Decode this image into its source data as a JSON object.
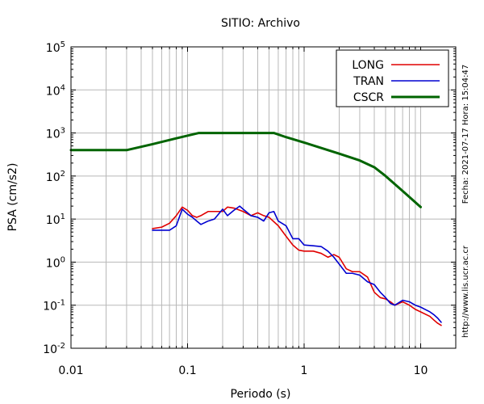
{
  "chart_data": {
    "type": "line",
    "title": "SITIO: Archivo",
    "xlabel": "Periodo (s)",
    "ylabel": "PSA (cm/s2)",
    "xscale": "log",
    "yscale": "log",
    "xlim": [
      0.01,
      20
    ],
    "ylim": [
      0.01,
      100000
    ],
    "grid": true,
    "legend_position": "top-right",
    "x_tick_labels": [
      "0.01",
      "0.1",
      "1",
      "10"
    ],
    "y_tick_labels": [
      {
        "base": "10",
        "exp": "-2"
      },
      {
        "base": "10",
        "exp": "-1"
      },
      {
        "base": "10",
        "exp": "0"
      },
      {
        "base": "10",
        "exp": "1"
      },
      {
        "base": "10",
        "exp": "2"
      },
      {
        "base": "10",
        "exp": "3"
      },
      {
        "base": "10",
        "exp": "4"
      },
      {
        "base": "10",
        "exp": "5"
      }
    ],
    "side_labels": {
      "date": "Fecha: 2021-07-17 Hora: 15:04:47",
      "url": "http://www.lis.ucr.ac.cr"
    },
    "series": [
      {
        "name": "LONG",
        "color": "#e00000",
        "points": [
          [
            0.05,
            6
          ],
          [
            0.06,
            6.5
          ],
          [
            0.07,
            8
          ],
          [
            0.08,
            12
          ],
          [
            0.09,
            19
          ],
          [
            0.1,
            16
          ],
          [
            0.11,
            12
          ],
          [
            0.12,
            11
          ],
          [
            0.13,
            12
          ],
          [
            0.15,
            15
          ],
          [
            0.17,
            15
          ],
          [
            0.2,
            15
          ],
          [
            0.22,
            19
          ],
          [
            0.25,
            18
          ],
          [
            0.3,
            15
          ],
          [
            0.35,
            12
          ],
          [
            0.4,
            14
          ],
          [
            0.45,
            12
          ],
          [
            0.5,
            11
          ],
          [
            0.6,
            7
          ],
          [
            0.7,
            4
          ],
          [
            0.8,
            2.5
          ],
          [
            0.9,
            1.9
          ],
          [
            1.0,
            1.8
          ],
          [
            1.2,
            1.8
          ],
          [
            1.4,
            1.6
          ],
          [
            1.6,
            1.3
          ],
          [
            1.8,
            1.5
          ],
          [
            2.0,
            1.3
          ],
          [
            2.3,
            0.7
          ],
          [
            2.6,
            0.6
          ],
          [
            3.0,
            0.6
          ],
          [
            3.5,
            0.45
          ],
          [
            4.0,
            0.2
          ],
          [
            4.5,
            0.15
          ],
          [
            5.0,
            0.14
          ],
          [
            5.5,
            0.12
          ],
          [
            6.0,
            0.1
          ],
          [
            7.0,
            0.12
          ],
          [
            8.0,
            0.1
          ],
          [
            9.0,
            0.08
          ],
          [
            10.0,
            0.07
          ],
          [
            12.0,
            0.055
          ],
          [
            13.0,
            0.045
          ],
          [
            14.0,
            0.038
          ],
          [
            15.0,
            0.034
          ]
        ]
      },
      {
        "name": "TRAN",
        "color": "#0000d0",
        "points": [
          [
            0.05,
            5.5
          ],
          [
            0.06,
            5.5
          ],
          [
            0.07,
            5.5
          ],
          [
            0.08,
            7
          ],
          [
            0.09,
            17
          ],
          [
            0.1,
            13
          ],
          [
            0.11,
            11
          ],
          [
            0.12,
            9
          ],
          [
            0.13,
            7.5
          ],
          [
            0.15,
            9
          ],
          [
            0.17,
            10
          ],
          [
            0.2,
            17
          ],
          [
            0.22,
            12
          ],
          [
            0.25,
            16
          ],
          [
            0.28,
            20
          ],
          [
            0.3,
            17
          ],
          [
            0.35,
            12
          ],
          [
            0.4,
            11
          ],
          [
            0.45,
            9
          ],
          [
            0.5,
            14
          ],
          [
            0.55,
            15
          ],
          [
            0.6,
            9
          ],
          [
            0.7,
            7
          ],
          [
            0.8,
            3.5
          ],
          [
            0.9,
            3.5
          ],
          [
            1.0,
            2.5
          ],
          [
            1.2,
            2.4
          ],
          [
            1.4,
            2.3
          ],
          [
            1.6,
            1.8
          ],
          [
            1.8,
            1.3
          ],
          [
            2.0,
            0.9
          ],
          [
            2.3,
            0.55
          ],
          [
            2.6,
            0.55
          ],
          [
            3.0,
            0.5
          ],
          [
            3.5,
            0.35
          ],
          [
            4.0,
            0.3
          ],
          [
            4.5,
            0.2
          ],
          [
            5.0,
            0.15
          ],
          [
            5.5,
            0.11
          ],
          [
            6.0,
            0.1
          ],
          [
            7.0,
            0.13
          ],
          [
            8.0,
            0.12
          ],
          [
            9.0,
            0.1
          ],
          [
            10.0,
            0.09
          ],
          [
            12.0,
            0.07
          ],
          [
            13.0,
            0.06
          ],
          [
            14.0,
            0.05
          ],
          [
            15.0,
            0.04
          ]
        ]
      },
      {
        "name": "CSCR",
        "color": "#006400",
        "points": [
          [
            0.01,
            400
          ],
          [
            0.03,
            400
          ],
          [
            0.05,
            550
          ],
          [
            0.08,
            750
          ],
          [
            0.125,
            1000
          ],
          [
            0.55,
            1000
          ],
          [
            0.7,
            800
          ],
          [
            1.0,
            600
          ],
          [
            2.0,
            330
          ],
          [
            3.0,
            230
          ],
          [
            4.0,
            160
          ],
          [
            5.0,
            100
          ],
          [
            7.0,
            45
          ],
          [
            10.0,
            19
          ]
        ]
      }
    ]
  }
}
